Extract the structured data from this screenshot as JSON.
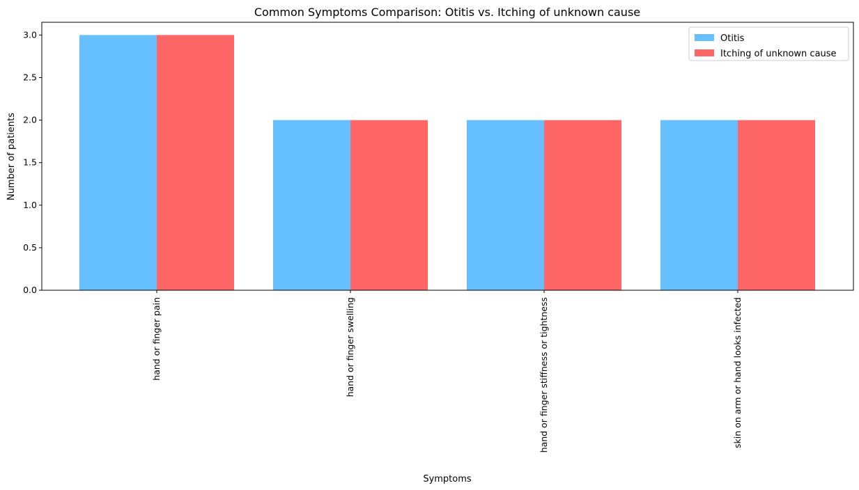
{
  "chart_data": {
    "type": "bar",
    "title": "Common Symptoms Comparison: Otitis vs. Itching of unknown cause",
    "xlabel": "Symptoms",
    "ylabel": "Number of patients",
    "categories": [
      "hand or finger pain",
      "hand or finger swelling",
      "hand or finger stiffness or tightness",
      "skin on arm or hand looks infected"
    ],
    "series": [
      {
        "name": "Otitis",
        "color": "#66c0ff",
        "values": [
          3,
          2,
          2,
          2
        ]
      },
      {
        "name": "Itching of unknown cause",
        "color": "#ff6666",
        "values": [
          3,
          2,
          2,
          2
        ]
      }
    ],
    "ylim": [
      0,
      3.15
    ],
    "yticks": [
      "0.0",
      "0.5",
      "1.0",
      "1.5",
      "2.0",
      "2.5",
      "3.0"
    ],
    "grid": false,
    "legend_position": "top-right"
  }
}
